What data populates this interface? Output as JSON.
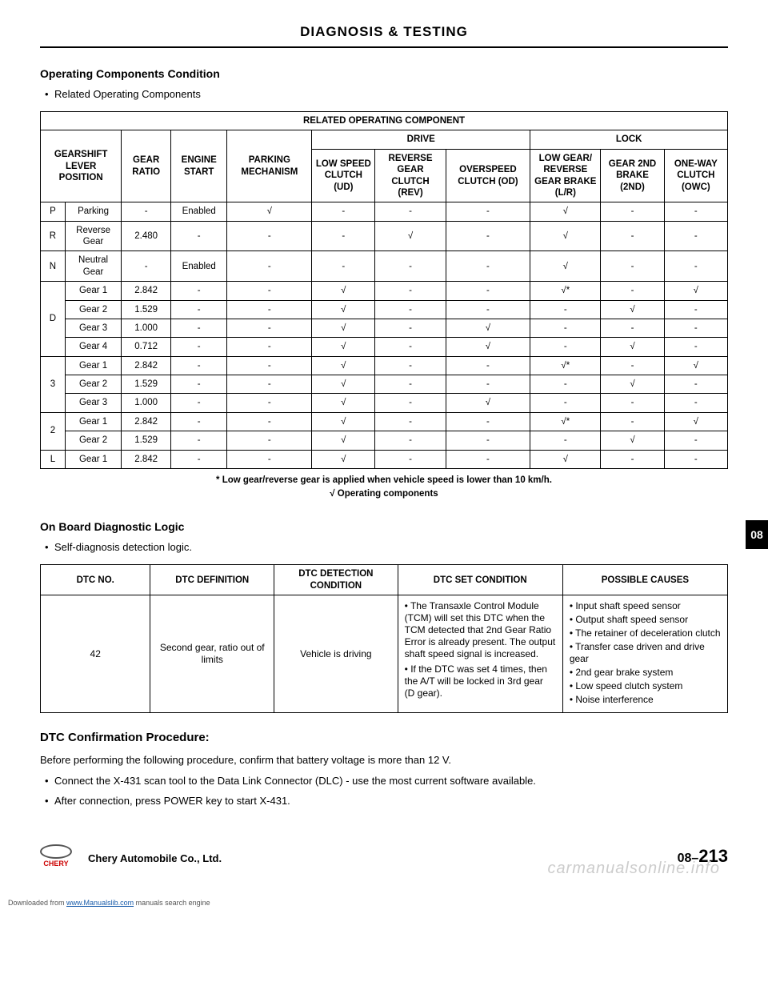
{
  "header": {
    "title": "DIAGNOSIS & TESTING",
    "side_tab": "08"
  },
  "section1": {
    "title": "Operating Components Condition",
    "bullet": "Related Operating Components"
  },
  "table1": {
    "top_header": "RELATED OPERATING COMPONENT",
    "group_drive": "DRIVE",
    "group_lock": "LOCK",
    "col_gearshift": "GEARSHIFT LEVER POSITION",
    "col_ratio": "GEAR RATIO",
    "col_engine": "ENGINE START",
    "col_parking": "PARKING MECHANISM",
    "col_lowspeed": "LOW SPEED CLUTCH (UD)",
    "col_reverse": "REVERSE GEAR CLUTCH (REV)",
    "col_overspeed": "OVERSPEED CLUTCH (OD)",
    "col_lowgear": "LOW GEAR/ REVERSE GEAR BRAKE (L/R)",
    "col_2nd": "GEAR 2ND BRAKE (2ND)",
    "col_oneway": "ONE-WAY CLUTCH (OWC)",
    "rows": [
      {
        "g": "P",
        "gear": "Parking",
        "ratio": "-",
        "eng": "Enabled",
        "park": "√",
        "ud": "-",
        "rev": "-",
        "od": "-",
        "lr": "√",
        "b2": "-",
        "owc": "-"
      },
      {
        "g": "R",
        "gear": "Reverse Gear",
        "ratio": "2.480",
        "eng": "-",
        "park": "-",
        "ud": "-",
        "rev": "√",
        "od": "-",
        "lr": "√",
        "b2": "-",
        "owc": "-"
      },
      {
        "g": "N",
        "gear": "Neutral Gear",
        "ratio": "-",
        "eng": "Enabled",
        "park": "-",
        "ud": "-",
        "rev": "-",
        "od": "-",
        "lr": "√",
        "b2": "-",
        "owc": "-"
      },
      {
        "g": "D",
        "gear": "Gear 1",
        "ratio": "2.842",
        "eng": "-",
        "park": "-",
        "ud": "√",
        "rev": "-",
        "od": "-",
        "lr": "√*",
        "b2": "-",
        "owc": "√"
      },
      {
        "g": "",
        "gear": "Gear 2",
        "ratio": "1.529",
        "eng": "-",
        "park": "-",
        "ud": "√",
        "rev": "-",
        "od": "-",
        "lr": "-",
        "b2": "√",
        "owc": "-"
      },
      {
        "g": "",
        "gear": "Gear 3",
        "ratio": "1.000",
        "eng": "-",
        "park": "-",
        "ud": "√",
        "rev": "-",
        "od": "√",
        "lr": "-",
        "b2": "-",
        "owc": "-"
      },
      {
        "g": "",
        "gear": "Gear 4",
        "ratio": "0.712",
        "eng": "-",
        "park": "-",
        "ud": "√",
        "rev": "-",
        "od": "√",
        "lr": "-",
        "b2": "√",
        "owc": "-"
      },
      {
        "g": "3",
        "gear": "Gear 1",
        "ratio": "2.842",
        "eng": "-",
        "park": "-",
        "ud": "√",
        "rev": "-",
        "od": "-",
        "lr": "√*",
        "b2": "-",
        "owc": "√"
      },
      {
        "g": "",
        "gear": "Gear 2",
        "ratio": "1.529",
        "eng": "-",
        "park": "-",
        "ud": "√",
        "rev": "-",
        "od": "-",
        "lr": "-",
        "b2": "√",
        "owc": "-"
      },
      {
        "g": "",
        "gear": "Gear 3",
        "ratio": "1.000",
        "eng": "-",
        "park": "-",
        "ud": "√",
        "rev": "-",
        "od": "√",
        "lr": "-",
        "b2": "-",
        "owc": "-"
      },
      {
        "g": "2",
        "gear": "Gear 1",
        "ratio": "2.842",
        "eng": "-",
        "park": "-",
        "ud": "√",
        "rev": "-",
        "od": "-",
        "lr": "√*",
        "b2": "-",
        "owc": "√"
      },
      {
        "g": "",
        "gear": "Gear 2",
        "ratio": "1.529",
        "eng": "-",
        "park": "-",
        "ud": "√",
        "rev": "-",
        "od": "-",
        "lr": "-",
        "b2": "√",
        "owc": "-"
      },
      {
        "g": "L",
        "gear": "Gear 1",
        "ratio": "2.842",
        "eng": "-",
        "park": "-",
        "ud": "√",
        "rev": "-",
        "od": "-",
        "lr": "√",
        "b2": "-",
        "owc": "-"
      }
    ],
    "note1": "* Low gear/reverse gear is applied when vehicle speed is lower than 10 km/h.",
    "note2": "√ Operating components"
  },
  "section2": {
    "title": "On Board Diagnostic Logic",
    "bullet": "Self-diagnosis detection logic."
  },
  "table2": {
    "h1": "DTC NO.",
    "h2": "DTC DEFINITION",
    "h3": "DTC DETECTION CONDITION",
    "h4": "DTC SET CONDITION",
    "h5": "POSSIBLE CAUSES",
    "row": {
      "no": "42",
      "def": "Second gear, ratio out of limits",
      "det": "Vehicle is driving",
      "set": [
        "The Transaxle Control Module (TCM) will set this DTC when the TCM detected that 2nd Gear Ratio Error is already present. The output shaft speed signal is increased.",
        "If the DTC was set 4 times, then the A/T will be locked in 3rd gear (D gear)."
      ],
      "causes": [
        "Input shaft speed sensor",
        "Output shaft speed sensor",
        "The retainer of deceleration clutch",
        "Transfer case driven and drive gear",
        "2nd gear brake system",
        "Low speed clutch system",
        "Noise interference"
      ]
    }
  },
  "section3": {
    "title": "DTC Confirmation Procedure:",
    "text": "Before performing the following procedure, confirm that battery voltage is more than 12 V.",
    "b1": "Connect the X-431 scan tool to the Data Link Connector (DLC) - use the most current software available.",
    "b2": "After connection, press POWER key to start X-431."
  },
  "footer": {
    "brand": "CHERY",
    "company": "Chery Automobile Co., Ltd.",
    "page_prefix": "08–",
    "page_num": "213",
    "watermark": "carmanualsonline.info",
    "download_pre": "Downloaded from ",
    "download_link": "www.Manualslib.com",
    "download_post": " manuals search engine"
  }
}
